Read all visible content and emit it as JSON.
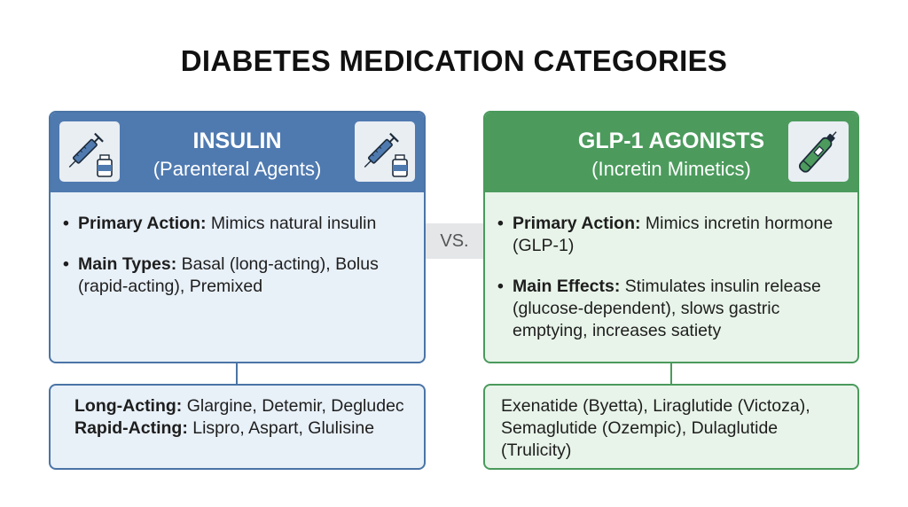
{
  "title": "DIABETES MEDICATION CATEGORIES",
  "vs_label": "VS.",
  "colors": {
    "insulin_header": "#4f7ab0",
    "insulin_body": "#e8f0f8",
    "glp_header": "#4c9b5d",
    "glp_body": "#e8f4e9"
  },
  "insulin": {
    "title": "INSULIN",
    "subtitle": "(Parenteral Agents)",
    "icon": "syringe-vial-icon",
    "bullets": [
      {
        "label": "Primary Action:",
        "text": " Mimics natural insulin"
      },
      {
        "label": "Main Types:",
        "text": " Basal (long-acting), Bolus (rapid-acting), Premixed"
      }
    ],
    "examples": [
      {
        "label": "Long-Acting:",
        "text": " Glargine, Detemir, Degludec"
      },
      {
        "label": "Rapid-Acting:",
        "text": " Lispro, Aspart, Glulisine"
      }
    ]
  },
  "glp1": {
    "title": "GLP-1 AGONISTS",
    "subtitle": "(Incretin Mimetics)",
    "icon": "injection-pen-icon",
    "bullets": [
      {
        "label": "Primary Action:",
        "text": " Mimics incretin hormone (GLP-1)"
      },
      {
        "label": "Main Effects:",
        "text": " Stimulates insulin release (glucose-dependent), slows gastric emptying, increases satiety"
      }
    ],
    "examples_text": "Exenatide (Byetta), Liraglutide (Victoza), Semaglutide (Ozempic), Dulaglutide (Trulicity)"
  }
}
